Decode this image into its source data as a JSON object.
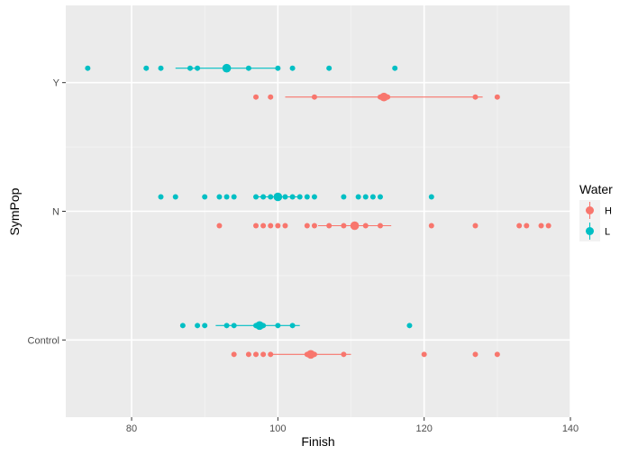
{
  "chart_data": {
    "type": "scatter",
    "title": "",
    "xlabel": "Finish",
    "ylabel": "SymPop",
    "xlim": [
      71,
      140
    ],
    "x_ticks": [
      80,
      100,
      120,
      140
    ],
    "categories": [
      "Control",
      "N",
      "Y"
    ],
    "grid": true,
    "legend": {
      "title": "Water",
      "position": "right",
      "entries": [
        {
          "name": "H",
          "color": "#F8766D"
        },
        {
          "name": "L",
          "color": "#00BFC4"
        }
      ]
    },
    "series": [
      {
        "name": "H",
        "color": "#F8766D",
        "groups": [
          {
            "category": "Y",
            "points": [
              97,
              99,
              105,
              114,
              114.5,
              115,
              127,
              130
            ],
            "mean": 114.5,
            "range": [
              101,
              128
            ]
          },
          {
            "category": "N",
            "points": [
              92,
              97,
              98,
              99,
              100,
              101,
              104,
              105,
              107,
              109,
              112,
              114,
              121,
              127,
              133,
              134,
              136,
              137
            ],
            "mean": 110.5,
            "range": [
              105.5,
              115.5
            ]
          },
          {
            "category": "Control",
            "points": [
              94,
              96,
              97,
              98,
              99,
              104,
              105,
              109,
              120,
              127,
              130
            ],
            "mean": 104.5,
            "range": [
              99,
              110
            ]
          }
        ]
      },
      {
        "name": "L",
        "color": "#00BFC4",
        "groups": [
          {
            "category": "Y",
            "points": [
              74,
              82,
              84,
              88,
              89,
              93,
              96,
              100,
              102,
              107,
              116
            ],
            "mean": 93,
            "range": [
              86,
              100
            ]
          },
          {
            "category": "N",
            "points": [
              84,
              86,
              90,
              92,
              93,
              94,
              97,
              98,
              99,
              100,
              101,
              102,
              103,
              104,
              105,
              109,
              111,
              112,
              113,
              114,
              121
            ],
            "mean": 100,
            "range": [
              97,
              103
            ]
          },
          {
            "category": "Control",
            "points": [
              87,
              89,
              90,
              93,
              94,
              97,
              98,
              100,
              102,
              118
            ],
            "mean": 97.5,
            "range": [
              91.5,
              103
            ]
          }
        ]
      }
    ]
  }
}
